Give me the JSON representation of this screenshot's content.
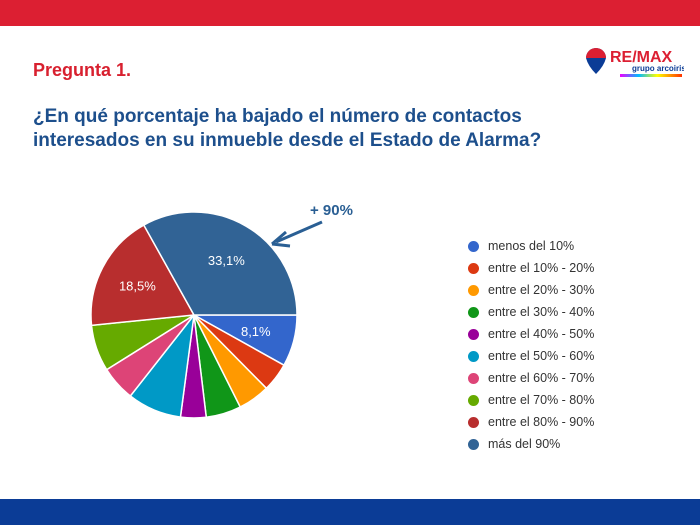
{
  "header": {
    "question_label": "Pregunta 1.",
    "question": "¿En qué porcentaje ha bajado el número de contactos interesados en su inmueble desde el Estado de Alarma?"
  },
  "logo": {
    "brand": "RE/MAX",
    "subtitle": "grupo arcoiris"
  },
  "chart_data": {
    "type": "pie",
    "categories": [
      "menos del 10%",
      "entre el 10% - 20%",
      "entre el 20% - 30%",
      "entre el 30% - 40%",
      "entre el 40% - 50%",
      "entre el 50% - 60%",
      "entre el 60% - 70%",
      "entre el 70% - 80%",
      "entre el 80% - 90%",
      "más del 90%"
    ],
    "values": [
      8.1,
      4.5,
      5.0,
      5.5,
      4.0,
      8.5,
      5.5,
      7.3,
      18.5,
      33.1
    ],
    "data_labels": [
      "8,1%",
      "",
      "",
      "",
      "",
      "",
      "",
      "",
      "18,5%",
      "33,1%"
    ],
    "colors": [
      "#3366cc",
      "#dc3912",
      "#ff9900",
      "#109618",
      "#990099",
      "#0099c6",
      "#dd4477",
      "#66aa00",
      "#b82e2e",
      "#316395"
    ],
    "annotation": "+ 90%",
    "legend_position": "right"
  }
}
